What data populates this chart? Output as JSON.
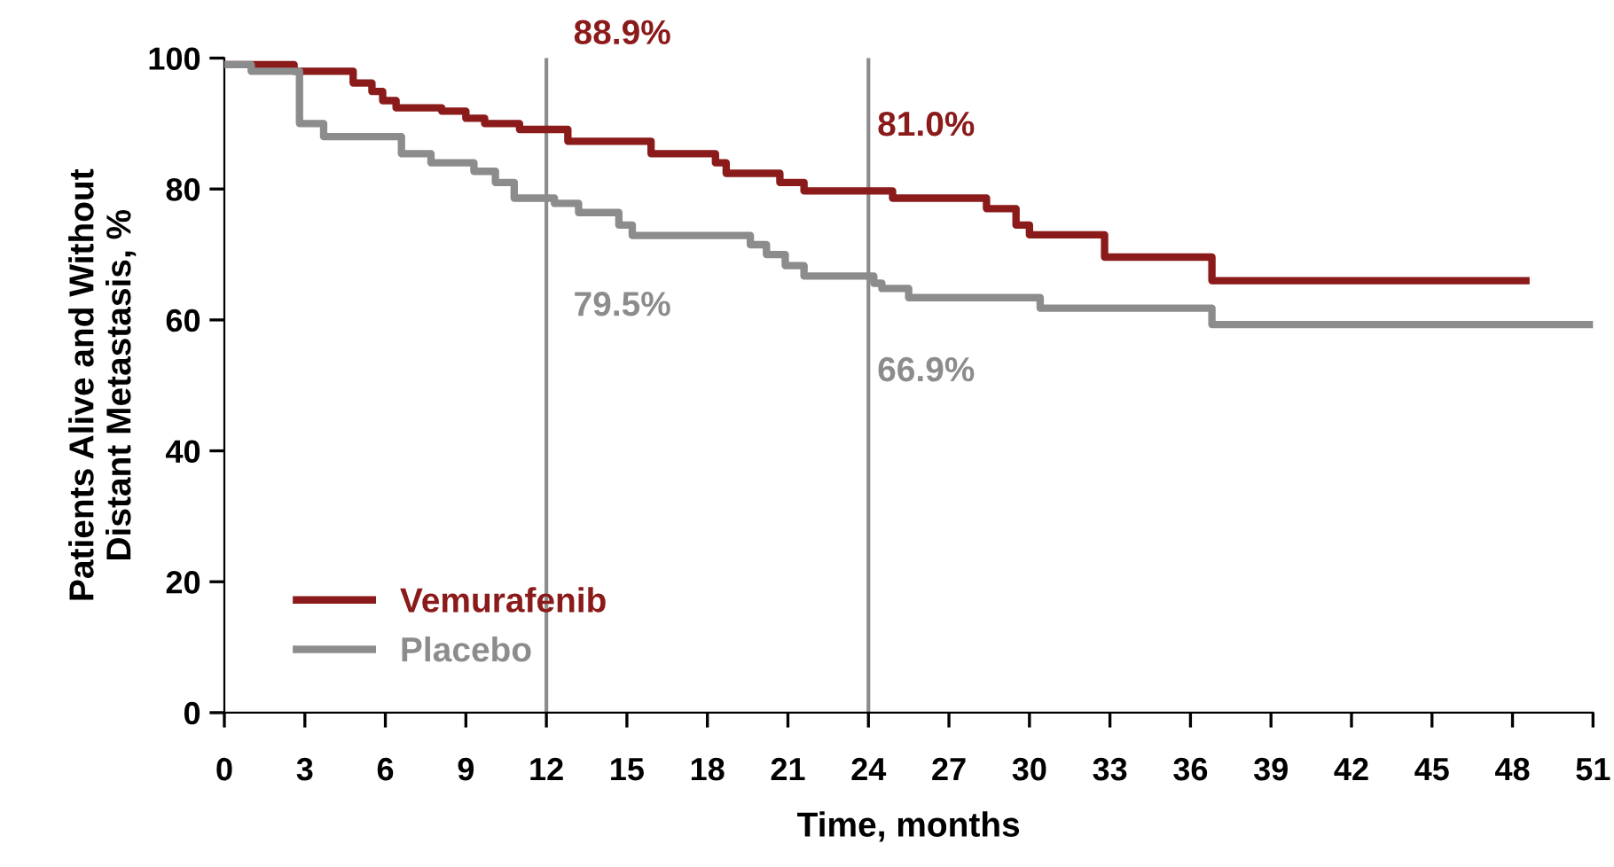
{
  "chart_data": {
    "type": "step",
    "xlabel": "Time, months",
    "ylabel": "Patients Alive and Without\nDistant Metastasis, %",
    "xlim": [
      0,
      51
    ],
    "xticks": [
      0,
      3,
      6,
      9,
      12,
      15,
      18,
      21,
      24,
      27,
      30,
      33,
      36,
      39,
      42,
      45,
      48,
      51
    ],
    "ylim": [
      0,
      100
    ],
    "yticks": [
      0,
      20,
      40,
      60,
      80,
      100
    ],
    "grid": false,
    "legend": "bottom left",
    "series": [
      {
        "name": "Vemurafenib",
        "color": "#8b1a1a",
        "x": [
          0,
          1,
          2.6,
          4.8,
          5.5,
          5.9,
          6.4,
          8.1,
          9.0,
          9.7,
          11,
          12.8,
          15.9,
          18.3,
          18.7,
          20.7,
          21.6,
          24.9,
          28.4,
          29.5,
          30,
          32.8,
          36.8,
          48.5
        ],
        "values": [
          99,
          99,
          98,
          96.2,
          94.9,
          93.5,
          92.4,
          91.9,
          90.8,
          90,
          89.1,
          87.3,
          85.4,
          84,
          82.4,
          81,
          79.7,
          78.6,
          77,
          74.5,
          73,
          69.6,
          66,
          66
        ]
      },
      {
        "name": "Placebo",
        "color": "#8c8c8c",
        "x": [
          0,
          1,
          2.4,
          2.8,
          3.7,
          6.6,
          7.7,
          9.3,
          10.1,
          10.8,
          12.3,
          13.2,
          14.7,
          15.2,
          19.6,
          20.2,
          20.9,
          21.6,
          24.2,
          24.5,
          25.5,
          30.4,
          36.8,
          51
        ],
        "values": [
          99,
          98,
          98,
          90,
          88,
          85.4,
          84,
          82.7,
          81,
          78.6,
          77.8,
          76.4,
          74.5,
          72.9,
          71.5,
          70,
          68.3,
          66.7,
          65.6,
          64.8,
          63.4,
          61.8,
          59.3,
          59.3
        ]
      }
    ],
    "ref_lines": [
      {
        "axis": "x",
        "value": 12,
        "color": "#8c8c8c"
      },
      {
        "axis": "x",
        "value": 24,
        "color": "#8c8c8c"
      }
    ],
    "annotations": [
      "88.9%",
      "79.5%",
      "81.0%",
      "66.9%"
    ]
  }
}
